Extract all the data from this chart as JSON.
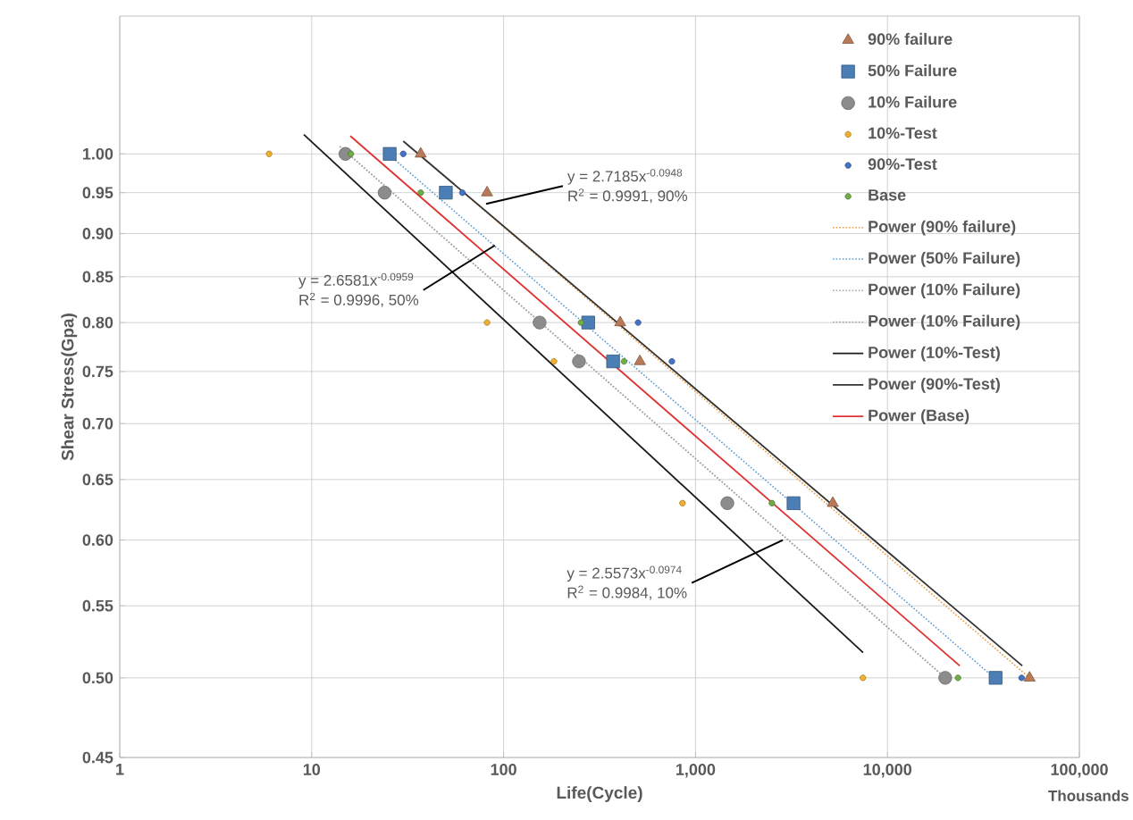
{
  "chart_data": {
    "type": "scatter",
    "xlabel": "Life(Cycle)",
    "ylabel": "Shear Stress(Gpa)",
    "log": "xy",
    "grid": true,
    "legend": "top right",
    "xlim": [
      1,
      100000
    ],
    "ylim": [
      0.45,
      1.2
    ],
    "xticks": [
      1,
      10,
      100,
      {
        "value": 1000,
        "label": "1,000"
      },
      {
        "value": 10000,
        "label": "10,000"
      },
      {
        "value": 100000,
        "label": "100,000"
      }
    ],
    "yticks": [
      {
        "value": 0.45,
        "label": "0.45"
      },
      {
        "value": 0.5,
        "label": "0.50"
      },
      {
        "value": 0.55,
        "label": "0.55"
      },
      {
        "value": 0.6,
        "label": "0.60"
      },
      {
        "value": 0.65,
        "label": "0.65"
      },
      {
        "value": 0.7,
        "label": "0.70"
      },
      {
        "value": 0.75,
        "label": "0.75"
      },
      {
        "value": 0.8,
        "label": "0.80"
      },
      {
        "value": 0.85,
        "label": "0.85"
      },
      {
        "value": 0.9,
        "label": "0.90"
      },
      {
        "value": 0.95,
        "label": "0.95"
      },
      {
        "value": 1.0,
        "label": "1.00"
      }
    ],
    "series": [
      {
        "name": "90% failure",
        "marker": "triangle",
        "color": "#b97a57",
        "x": [
          37,
          82,
          405,
          513,
          5190,
          55000
        ],
        "values": [
          1.0,
          0.95,
          0.8,
          0.76,
          0.63,
          0.5
        ]
      },
      {
        "name": "50% Failure",
        "marker": "square",
        "color": "#4a7eb5",
        "x": [
          25.5,
          50,
          276,
          372,
          3240,
          36600
        ],
        "values": [
          1.0,
          0.95,
          0.8,
          0.76,
          0.63,
          0.5
        ]
      },
      {
        "name": "10% Failure",
        "marker": "circle",
        "color": "#8c8c8c",
        "x": [
          15,
          24,
          154,
          247,
          1465,
          20000
        ],
        "values": [
          1.0,
          0.95,
          0.8,
          0.76,
          0.63,
          0.5
        ]
      },
      {
        "name": "10%-Test",
        "marker": "circle",
        "color": "#f0b030",
        "x": [
          6,
          82,
          183,
          855,
          7450
        ],
        "values": [
          1.0,
          0.8,
          0.76,
          0.63,
          0.5
        ]
      },
      {
        "name": "90%-Test",
        "marker": "circle",
        "color": "#4472c4",
        "x": [
          30,
          61,
          502,
          753,
          50000
        ],
        "values": [
          1.0,
          0.95,
          0.8,
          0.76,
          0.5
        ]
      },
      {
        "name": "Base",
        "marker": "circle",
        "color": "#70ad47",
        "x": [
          16,
          37,
          253,
          424,
          2500,
          23300
        ],
        "values": [
          1.0,
          0.95,
          0.8,
          0.76,
          0.63,
          0.5
        ]
      },
      {
        "name": "Power (90% failure)",
        "type": "line",
        "line_style": "dotted",
        "color": "#ed9b40",
        "x": [
          36,
          55000
        ],
        "values": [
          1.0,
          0.5
        ]
      },
      {
        "name": "Power (50% Failure)",
        "type": "line",
        "line_style": "dotted",
        "color": "#5b9bd5",
        "x": [
          25,
          36000
        ],
        "values": [
          1.0,
          0.5
        ]
      },
      {
        "name": "Power (10% Failure)",
        "type": "line",
        "line_style": "dotted",
        "color": "#a5a5a5",
        "x": [
          14,
          20000
        ],
        "values": [
          1.01,
          0.5
        ]
      },
      {
        "name": "Power (10% Failure)",
        "type": "line",
        "line_style": "dotted",
        "color": "#a5a5a5",
        "x": [
          14,
          20000
        ],
        "values": [
          1.01,
          0.5
        ]
      },
      {
        "name": "Power (10%-Test)",
        "type": "line",
        "line_style": "solid",
        "color": "#1a1a1a",
        "x": [
          9.1,
          7470
        ],
        "values": [
          1.026,
          0.517
        ]
      },
      {
        "name": "Power (90%-Test)",
        "type": "line",
        "line_style": "solid",
        "color": "#333333",
        "x": [
          30,
          50400
        ],
        "values": [
          1.017,
          0.508
        ]
      },
      {
        "name": "Power (Base)",
        "type": "line",
        "line_style": "solid",
        "color": "#e03030",
        "x": [
          15.9,
          23800
        ],
        "values": [
          1.024,
          0.508
        ]
      }
    ],
    "annotations": [
      {
        "text": "y = 2.7185x$^{-0.0948}$",
        "x": 81,
        "y": 0.936
      },
      "R$^{2}$ = 0.9991, 90%",
      {
        "text": "y = 2.6581x$^{-0.0959}$",
        "x": 90,
        "y": 0.886
      },
      "R$^{2}$ = 0.9996, 50%",
      {
        "text": "y = 2.5573x$^{-0.0974}$",
        "x": 2850,
        "y": 0.6
      },
      "R$^{2}$ = 0.9984, 10%",
      "Thousands"
    ]
  }
}
